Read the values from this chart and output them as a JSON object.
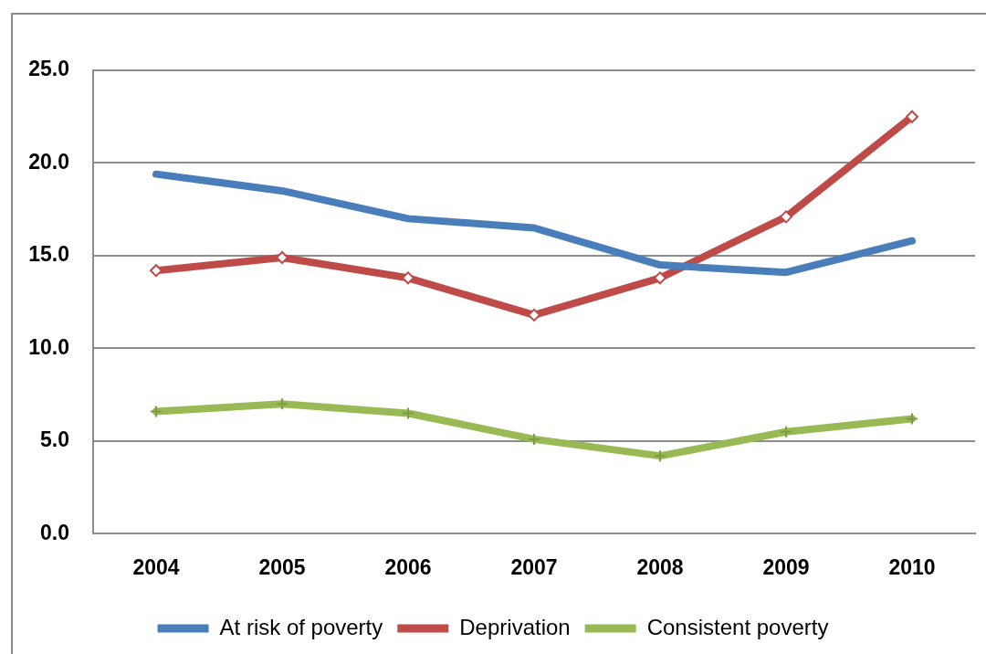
{
  "chart_data": {
    "type": "line",
    "categories": [
      "2004",
      "2005",
      "2006",
      "2007",
      "2008",
      "2009",
      "2010"
    ],
    "series": [
      {
        "name": "At risk of poverty",
        "color": "#4a7ebb",
        "marker": "none",
        "values": [
          19.4,
          18.5,
          17.0,
          16.5,
          14.5,
          14.1,
          15.8
        ]
      },
      {
        "name": "Deprivation",
        "color": "#be4b48",
        "marker": "diamond",
        "values": [
          14.2,
          14.9,
          13.8,
          11.8,
          13.8,
          17.1,
          22.5
        ]
      },
      {
        "name": "Consistent poverty",
        "color": "#98b954",
        "marker": "cross",
        "values": [
          6.6,
          7.0,
          6.5,
          5.1,
          4.2,
          5.5,
          6.2
        ]
      }
    ],
    "ylim": [
      0,
      25
    ],
    "yticks": [
      {
        "value": 0,
        "label": "0.0"
      },
      {
        "value": 5,
        "label": "5.0"
      },
      {
        "value": 10,
        "label": "10.0"
      },
      {
        "value": 15,
        "label": "15.0"
      },
      {
        "value": 20,
        "label": "20.0"
      },
      {
        "value": 25,
        "label": "25.0"
      }
    ],
    "grid": "y",
    "legend": "bottom",
    "line_style": "solid"
  }
}
